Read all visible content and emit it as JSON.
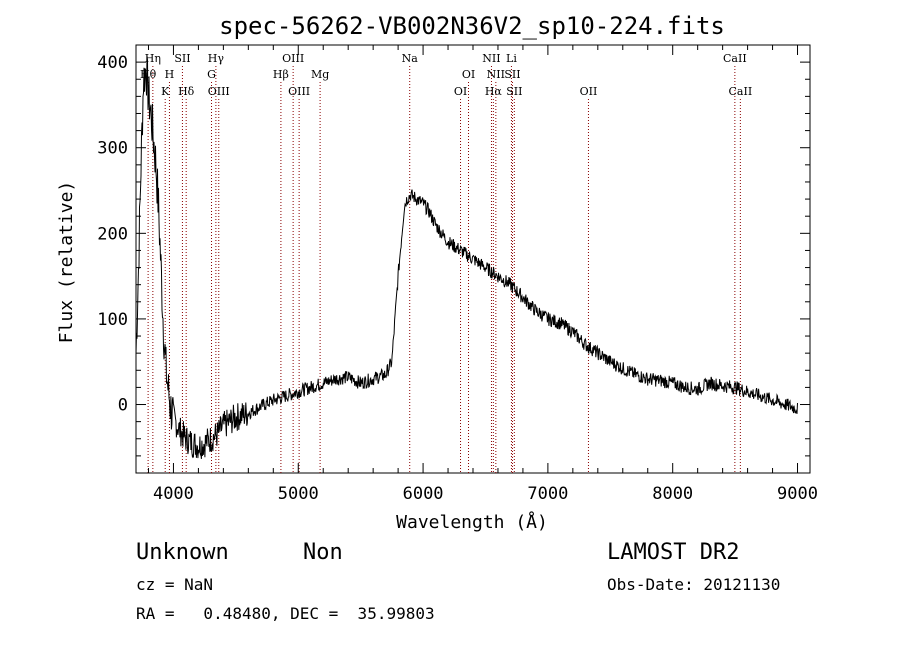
{
  "chart_data": {
    "type": "line",
    "title": "spec-56262-VB002N36V2_sp10-224.fits",
    "xlabel": "Wavelength (Å)",
    "ylabel": "Flux (relative)",
    "xlim": [
      3700,
      9100
    ],
    "ylim": [
      -80,
      420
    ],
    "xticks": [
      4000,
      5000,
      6000,
      7000,
      8000,
      9000
    ],
    "yticks": [
      0,
      100,
      200,
      300,
      400
    ],
    "grid": false,
    "colors": {
      "line": "#000000",
      "marker": "#8b0000"
    },
    "series": [
      {
        "x": [
          3700,
          3720,
          3740,
          3760,
          3780,
          3800,
          3820,
          3840,
          3860,
          3880,
          3900,
          3920,
          3940,
          3960,
          3980,
          4000,
          4050,
          4100,
          4150,
          4200,
          4250,
          4300,
          4350,
          4400,
          4450,
          4500,
          4600,
          4700,
          4800,
          4900,
          5000,
          5100,
          5200,
          5300,
          5400,
          5500,
          5600,
          5700,
          5750,
          5800,
          5850,
          5870,
          5900,
          5950,
          6000,
          6050,
          6100,
          6200,
          6300,
          6400,
          6500,
          6600,
          6700,
          6800,
          6900,
          7000,
          7100,
          7200,
          7300,
          7400,
          7500,
          7600,
          7700,
          7800,
          7900,
          8000,
          8100,
          8200,
          8300,
          8400,
          8500,
          8600,
          8700,
          8800,
          8900,
          9000
        ],
        "values": [
          60,
          160,
          280,
          380,
          395,
          360,
          340,
          310,
          280,
          230,
          160,
          90,
          40,
          15,
          -5,
          -15,
          -30,
          -40,
          -45,
          -48,
          -45,
          -40,
          -35,
          -25,
          -20,
          -15,
          -10,
          -2,
          5,
          10,
          15,
          20,
          25,
          30,
          32,
          25,
          30,
          35,
          50,
          150,
          232,
          240,
          245,
          240,
          235,
          225,
          210,
          190,
          180,
          170,
          160,
          150,
          140,
          125,
          110,
          100,
          95,
          85,
          70,
          60,
          50,
          42,
          35,
          30,
          28,
          25,
          20,
          18,
          25,
          22,
          20,
          15,
          10,
          5,
          0,
          -5
        ]
      }
    ],
    "line_markers": [
      {
        "label": "Hη",
        "x": 3835,
        "row": 0
      },
      {
        "label": "Hθ",
        "x": 3797,
        "row": 1
      },
      {
        "label": "H",
        "x": 3968,
        "row": 1
      },
      {
        "label": "K",
        "x": 3934,
        "row": 2
      },
      {
        "label": "SII",
        "x": 4072,
        "row": 0
      },
      {
        "label": "Hδ",
        "x": 4102,
        "row": 2
      },
      {
        "label": "Hγ",
        "x": 4340,
        "row": 0
      },
      {
        "label": "G",
        "x": 4305,
        "row": 1
      },
      {
        "label": "OIII",
        "x": 4363,
        "row": 2
      },
      {
        "label": "OIII",
        "x": 4959,
        "row": 0
      },
      {
        "label": "Hβ",
        "x": 4861,
        "row": 1
      },
      {
        "label": "OIII",
        "x": 5007,
        "row": 2
      },
      {
        "label": "Mg",
        "x": 5175,
        "row": 1
      },
      {
        "label": "Na",
        "x": 5893,
        "row": 0
      },
      {
        "label": "OI",
        "x": 6364,
        "row": 1
      },
      {
        "label": "OI",
        "x": 6300,
        "row": 2
      },
      {
        "label": "NII",
        "x": 6548,
        "row": 0
      },
      {
        "label": "NII",
        "x": 6583,
        "row": 1
      },
      {
        "label": "Hα",
        "x": 6563,
        "row": 2
      },
      {
        "label": "Li",
        "x": 6708,
        "row": 0
      },
      {
        "label": "SII",
        "x": 6716,
        "row": 1
      },
      {
        "label": "SII",
        "x": 6731,
        "row": 2
      },
      {
        "label": "OII",
        "x": 7325,
        "row": 2
      },
      {
        "label": "CaII",
        "x": 8498,
        "row": 0
      },
      {
        "label": "CaII",
        "x": 8542,
        "row": 2
      }
    ]
  },
  "info": {
    "object_class": "Unknown",
    "subclass": "Non",
    "survey": "LAMOST DR2",
    "cz": "cz = NaN",
    "obs_date": "Obs-Date: 20121130",
    "radec": "RA =   0.48480, DEC =  35.99803"
  }
}
